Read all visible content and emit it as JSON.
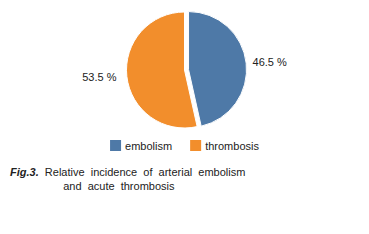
{
  "chart_data": {
    "type": "pie",
    "categories": [
      "embolism",
      "thrombosis"
    ],
    "values": [
      46.5,
      53.5
    ],
    "value_labels": [
      "46.5 %",
      "53.5 %"
    ],
    "data_labels": true,
    "legend": "bottom",
    "annotations": [
      "Fig.3.",
      "  Relative  incidence  of  arterial  embolism\n        and  acute  thrombosis"
    ]
  }
}
